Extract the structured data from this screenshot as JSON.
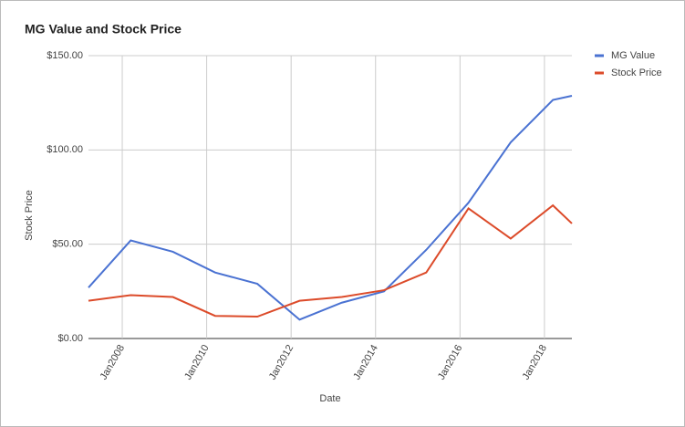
{
  "chart_data": {
    "type": "line",
    "title": "MG Value and Stock Price",
    "x_label": "Date",
    "y_label": "Stock Price",
    "x": [
      2007.2,
      2008.2,
      2009.2,
      2010.2,
      2011.2,
      2012.2,
      2013.2,
      2014.2,
      2015.2,
      2016.2,
      2017.2,
      2018.2,
      2018.65
    ],
    "series": [
      {
        "name": "MG Value",
        "color": "#4a72d2",
        "values": [
          27,
          52,
          46,
          35,
          29,
          10,
          19,
          25,
          47,
          72,
          104,
          126.5,
          128.7
        ]
      },
      {
        "name": "Stock Price",
        "color": "#dc4b2a",
        "values": [
          20,
          23,
          22,
          12,
          11.6,
          20,
          22,
          25.6,
          35,
          69,
          53,
          70.6,
          61
        ]
      }
    ],
    "xlim": [
      2007.2,
      2018.65
    ],
    "xticks": [
      {
        "value": 2008,
        "label": "Jan2008"
      },
      {
        "value": 2010,
        "label": "Jan2010"
      },
      {
        "value": 2012,
        "label": "Jan2012"
      },
      {
        "value": 2014,
        "label": "Jan2014"
      },
      {
        "value": 2016,
        "label": "Jan2016"
      },
      {
        "value": 2018,
        "label": "Jan2018"
      }
    ],
    "ylim": [
      0,
      150
    ],
    "yticks": [
      {
        "value": 0,
        "label": "$0.00"
      },
      {
        "value": 50,
        "label": "$50.00"
      },
      {
        "value": 100,
        "label": "$100.00"
      },
      {
        "value": 150,
        "label": "$150.00"
      }
    ],
    "grid": true,
    "legend": "right"
  }
}
